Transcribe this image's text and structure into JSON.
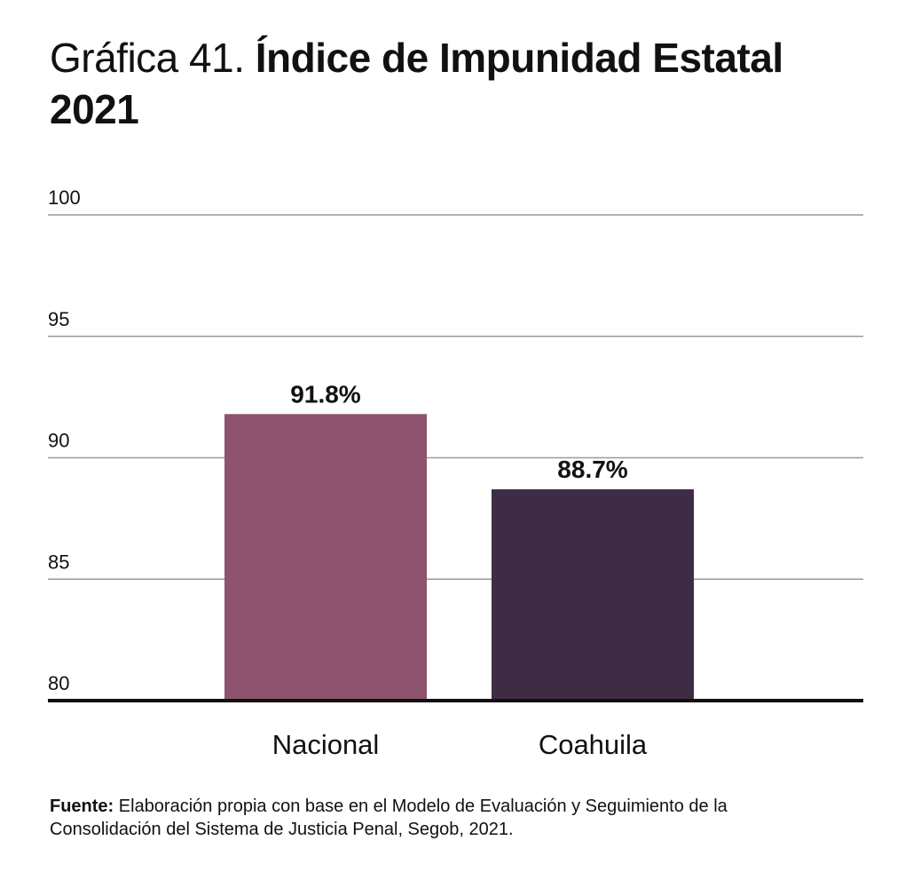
{
  "title": {
    "prefix": "Gráfica 41.",
    "main": "Índice de Impunidad Estatal 2021"
  },
  "chart_data": {
    "type": "bar",
    "title": "Gráfica 41. Índice de Impunidad Estatal 2021",
    "categories": [
      "Nacional",
      "Coahuila"
    ],
    "values": [
      91.8,
      88.7
    ],
    "data_labels": [
      "91.8%",
      "88.7%"
    ],
    "colors": [
      "#8e546f",
      "#3e2b44"
    ],
    "ylim": [
      80,
      100
    ],
    "yticks": [
      80,
      85,
      90,
      95,
      100
    ],
    "ytick_labels": [
      "80",
      "85",
      "90",
      "95",
      "100"
    ],
    "xlabel": "",
    "ylabel": "",
    "grid": true
  },
  "source": {
    "label": "Fuente:",
    "text": "Elaboración propia con base en el Modelo de Evaluación y Seguimiento de la Consolidación del Sistema de Justicia Penal, Segob, 2021."
  },
  "colors": {
    "grid": "#9a9a9a",
    "axis": "#111111",
    "text": "#111111"
  }
}
